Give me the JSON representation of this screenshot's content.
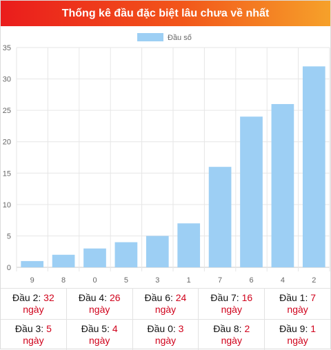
{
  "header": {
    "title": "Thống kê đầu đặc biệt lâu chưa về nhất"
  },
  "chart_data": {
    "type": "bar",
    "title": "Thống kê đầu đặc biệt lâu chưa về nhất",
    "categories": [
      "9",
      "8",
      "0",
      "5",
      "3",
      "1",
      "7",
      "6",
      "4",
      "2"
    ],
    "series": [
      {
        "name": "Đầu số",
        "values": [
          1,
          2,
          3,
          4,
          5,
          7,
          16,
          24,
          26,
          32
        ]
      }
    ],
    "ylim": [
      0,
      35
    ],
    "yticks": [
      0,
      5,
      10,
      15,
      20,
      25,
      30,
      35
    ],
    "grid": true,
    "legend_position": "top-center",
    "bar_color": "#9dcff4"
  },
  "stats": {
    "day_unit": "ngày",
    "rows": [
      [
        {
          "label": "Đầu 2:",
          "days": "32"
        },
        {
          "label": "Đầu 4:",
          "days": "26"
        },
        {
          "label": "Đầu 6:",
          "days": "24"
        },
        {
          "label": "Đầu 7:",
          "days": "16"
        },
        {
          "label": "Đầu 1:",
          "days": "7"
        }
      ],
      [
        {
          "label": "Đầu 3:",
          "days": "5"
        },
        {
          "label": "Đầu 5:",
          "days": "4"
        },
        {
          "label": "Đầu 0:",
          "days": "3"
        },
        {
          "label": "Đầu 8:",
          "days": "2"
        },
        {
          "label": "Đầu 9:",
          "days": "1"
        }
      ]
    ]
  }
}
